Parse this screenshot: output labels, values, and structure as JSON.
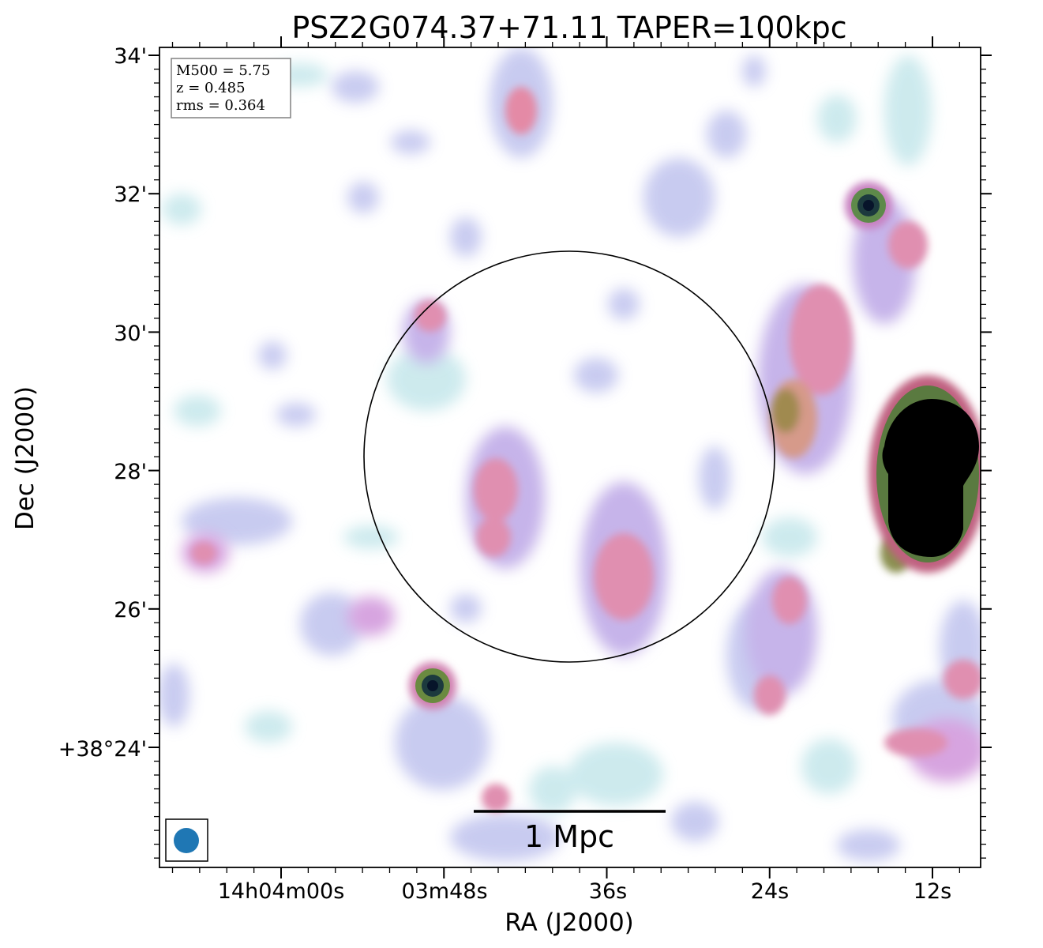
{
  "chart_data": {
    "type": "heatmap",
    "title": "PSZ2G074.37+71.11 TAPER=100kpc",
    "xlabel": "RA (J2000)",
    "ylabel": "Dec (J2000)",
    "x_tick_labels": [
      "14h04m00s",
      "03m48s",
      "36s",
      "24s",
      "12s"
    ],
    "y_tick_labels": [
      "34'",
      "32'",
      "30'",
      "28'",
      "26'",
      "+38°24'"
    ],
    "info_box": [
      "M500 = 5.75",
      "z = 0.485",
      "rms = 0.364"
    ],
    "scale_bar_label": "1 Mpc",
    "colormap": [
      "#ffffff",
      "#c8e8ec",
      "#b7c6ee",
      "#d7a4e0",
      "#e48aa6",
      "#a08a50",
      "#3c7a4a",
      "#0b1a33",
      "#000000"
    ],
    "beam_color": "#1f77b4",
    "annotations": [
      "circle (R500 region)",
      "beam ellipse",
      "scale bar"
    ]
  }
}
